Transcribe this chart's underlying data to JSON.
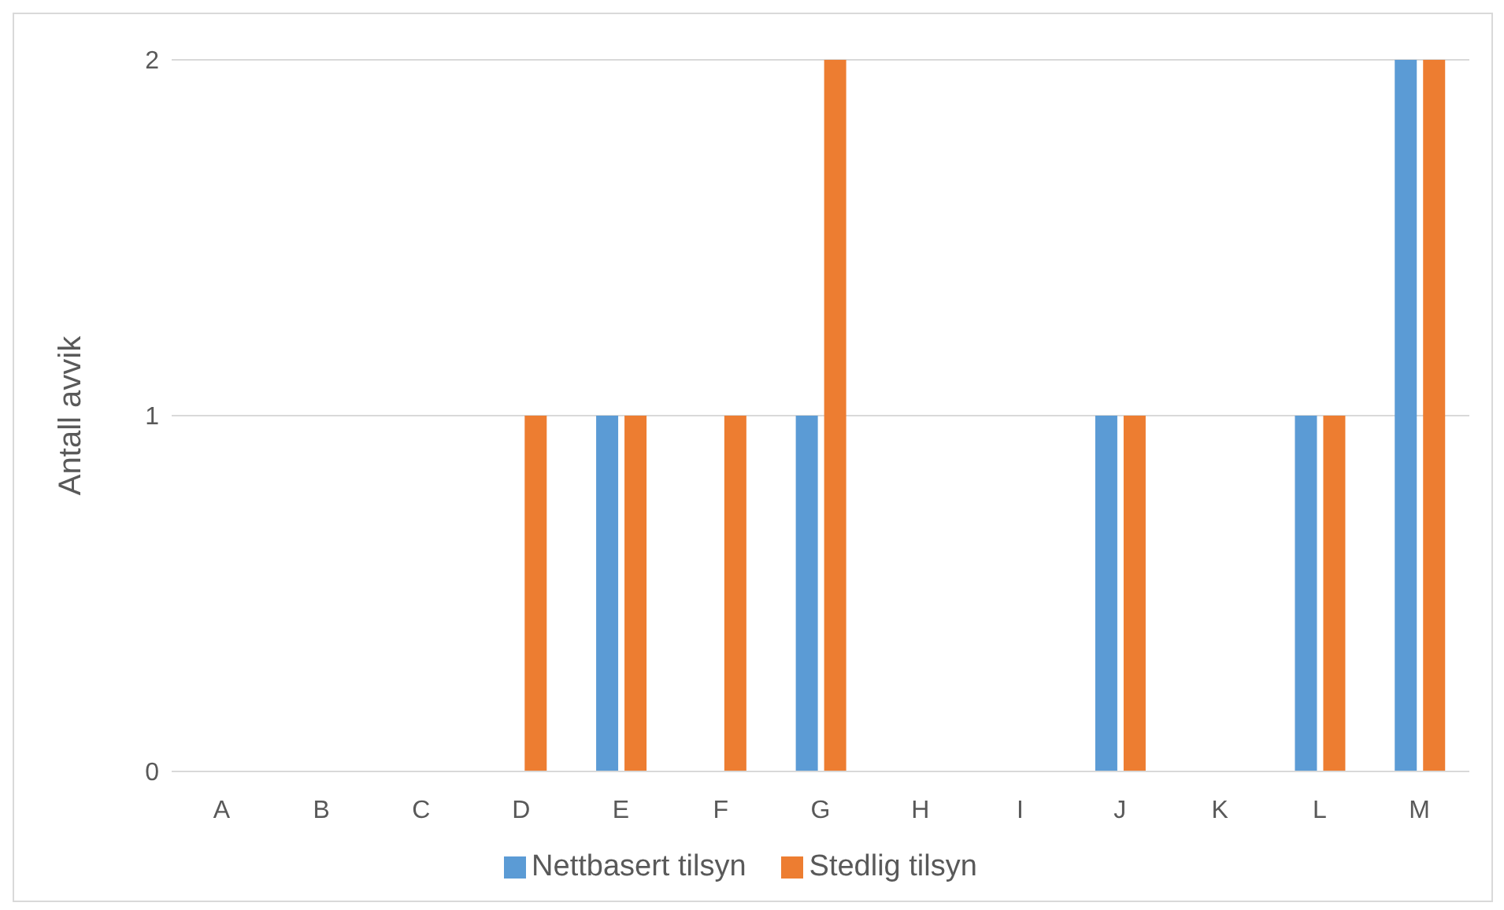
{
  "chart_data": {
    "type": "bar",
    "ylabel": "Antall avvik",
    "categories": [
      "A",
      "B",
      "C",
      "D",
      "E",
      "F",
      "G",
      "H",
      "I",
      "J",
      "K",
      "L",
      "M"
    ],
    "series": [
      {
        "name": "Nettbasert tilsyn",
        "color": "#5b9bd5",
        "values": [
          0,
          0,
          0,
          0,
          1,
          0,
          1,
          0,
          0,
          1,
          0,
          1,
          2
        ]
      },
      {
        "name": "Stedlig tilsyn",
        "color": "#ed7d31",
        "values": [
          0,
          0,
          0,
          1,
          1,
          1,
          2,
          0,
          0,
          1,
          0,
          1,
          2
        ]
      }
    ],
    "ylim": [
      0,
      2
    ],
    "yticks": [
      0,
      1,
      2
    ],
    "grid": "y",
    "legend": "bottom"
  }
}
